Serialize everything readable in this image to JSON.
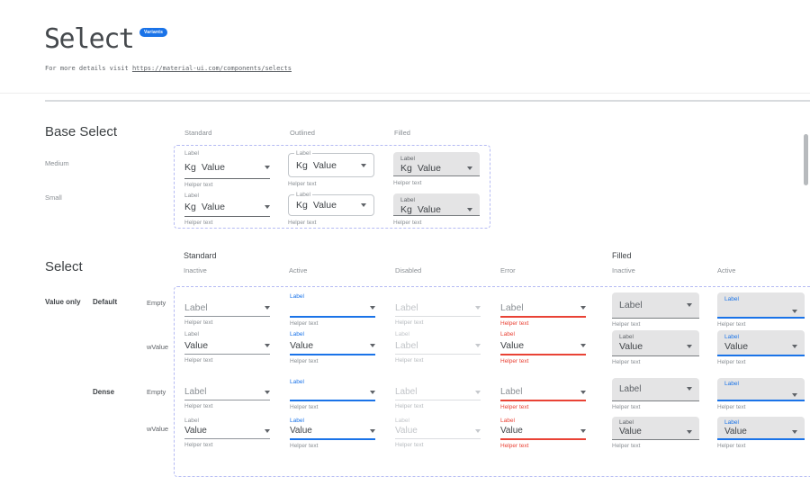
{
  "header": {
    "title": "Select",
    "badge": "Variants",
    "subtitle_prefix": "For more details visit ",
    "subtitle_link": "https://material-ui.com/components/selects"
  },
  "base_select": {
    "heading": "Base Select",
    "columns": [
      "Standard",
      "Outlined",
      "Filled"
    ],
    "row_labels": [
      "Medium",
      "Small"
    ],
    "cell": {
      "label": "Label",
      "adornment": "Kg",
      "value": "Value",
      "helper": "Helper text"
    }
  },
  "select_matrix": {
    "heading": "Select",
    "group_headers": [
      "Standard",
      "Filled"
    ],
    "state_headers": [
      "Inactive",
      "Active",
      "Disabled",
      "Error",
      "Inactive",
      "Active"
    ],
    "row_group_labels": [
      "Value only",
      "Default",
      "Dense"
    ],
    "row_labels": [
      "Empty",
      "wValue",
      "Empty",
      "wValue"
    ],
    "helper": "Helper text",
    "cells": [
      [
        {
          "cap": "",
          "val": "Label",
          "ph": true
        },
        {
          "cap": "Label",
          "val": "",
          "ph": false
        },
        {
          "cap": "",
          "val": "Label",
          "ph": true
        },
        {
          "cap": "",
          "val": "Label",
          "ph": true
        },
        {
          "cap": "",
          "val": "Label",
          "ph": true
        },
        {
          "cap": "Label",
          "val": "",
          "ph": false
        }
      ],
      [
        {
          "cap": "Label",
          "val": "Value",
          "ph": false
        },
        {
          "cap": "Label",
          "val": "Value",
          "ph": false
        },
        {
          "cap": "Label",
          "val": "Label",
          "ph": false
        },
        {
          "cap": "Label",
          "val": "Value",
          "ph": false
        },
        {
          "cap": "Label",
          "val": "Value",
          "ph": false
        },
        {
          "cap": "Label",
          "val": "Value",
          "ph": false
        }
      ],
      [
        {
          "cap": "",
          "val": "Label",
          "ph": true
        },
        {
          "cap": "Label",
          "val": "",
          "ph": false
        },
        {
          "cap": "",
          "val": "Label",
          "ph": true
        },
        {
          "cap": "",
          "val": "Label",
          "ph": true
        },
        {
          "cap": "",
          "val": "Label",
          "ph": true
        },
        {
          "cap": "Label",
          "val": "",
          "ph": false
        }
      ],
      [
        {
          "cap": "Label",
          "val": "Value",
          "ph": false
        },
        {
          "cap": "Label",
          "val": "Value",
          "ph": false
        },
        {
          "cap": "Label",
          "val": "Value",
          "ph": false
        },
        {
          "cap": "Label",
          "val": "Value",
          "ph": false
        },
        {
          "cap": "Label",
          "val": "Value",
          "ph": false
        },
        {
          "cap": "Label",
          "val": "Value",
          "ph": false
        }
      ]
    ]
  },
  "colors": {
    "accent_blue": "#1a73e8",
    "error_red": "#e94235",
    "dashed_border": "#b5bbf3",
    "filled_bg": "#e4e4e5",
    "text_primary": "#3f4347",
    "text_secondary": "#8a8f94",
    "text_disabled": "#c2c5c9"
  }
}
